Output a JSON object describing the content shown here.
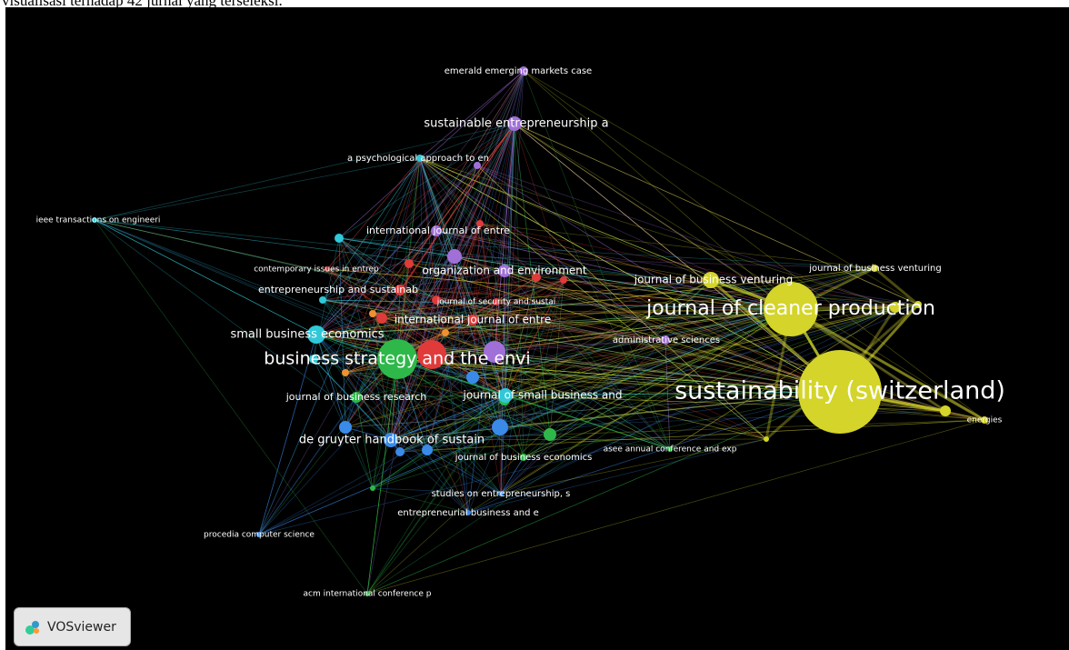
{
  "caption": "visualisasi terhadap 42 jurnal yang terseleksi.",
  "nodes": [
    {
      "label": "emerald emerging markets case"
    },
    {
      "label": "sustainable entrepreneurship a"
    },
    {
      "label": "a psychological approach to en"
    },
    {
      "label": "ieee transactions on engineeri"
    },
    {
      "label": "international journal of entre"
    },
    {
      "label": "contemporary issues in entrep"
    },
    {
      "label": "organization and environment"
    },
    {
      "label": "entrepreneurship and sustainab"
    },
    {
      "label": "journal of security and sustai"
    },
    {
      "label": "international journal of entre"
    },
    {
      "label": "journal of business venturing"
    },
    {
      "label": "journal of business venturing"
    },
    {
      "label": "journal of cleaner production"
    },
    {
      "label": "small business economics"
    },
    {
      "label": "administrative sciences"
    },
    {
      "label": "business strategy and the envi"
    },
    {
      "label": "sustainability (switzerland)"
    },
    {
      "label": "journal of business research"
    },
    {
      "label": "journal of small business and"
    },
    {
      "label": "energies"
    },
    {
      "label": "de gruyter handbook of sustain"
    },
    {
      "label": "asee annual conference and exp"
    },
    {
      "label": "journal of business economics"
    },
    {
      "label": "studies on entrepreneurship, s"
    },
    {
      "label": "entrepreneurial business and e"
    },
    {
      "label": "procedia computer science"
    },
    {
      "label": "acm international conference p"
    }
  ],
  "logo": "VOSviewer"
}
